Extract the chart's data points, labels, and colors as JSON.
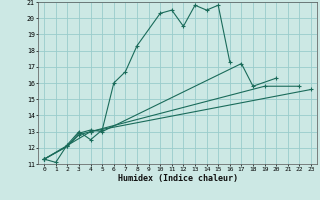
{
  "xlabel": "Humidex (Indice chaleur)",
  "ylabel": "",
  "xlim": [
    -0.5,
    23.5
  ],
  "ylim": [
    11,
    21
  ],
  "xtick_labels": [
    "0",
    "1",
    "2",
    "3",
    "4",
    "5",
    "6",
    "7",
    "8",
    "9",
    "10",
    "11",
    "12",
    "13",
    "14",
    "15",
    "16",
    "17",
    "18",
    "19",
    "20",
    "21",
    "22",
    "23"
  ],
  "ytick_labels": [
    "11",
    "12",
    "13",
    "14",
    "15",
    "16",
    "17",
    "18",
    "19",
    "20",
    "21"
  ],
  "background_color": "#cce8e4",
  "grid_color": "#99cccc",
  "line_color": "#1a6b5a",
  "series": [
    [
      0,
      11.3
    ],
    [
      1,
      11.1
    ],
    [
      2,
      12.2
    ],
    [
      3,
      13.0
    ],
    [
      4,
      12.5
    ],
    [
      5,
      13.1
    ],
    [
      6,
      16.0
    ],
    [
      7,
      16.7
    ],
    [
      8,
      18.3
    ],
    [
      10,
      20.3
    ],
    [
      11,
      20.5
    ],
    [
      12,
      19.5
    ],
    [
      13,
      20.8
    ],
    [
      14,
      20.5
    ],
    [
      15,
      20.8
    ],
    [
      16,
      17.3
    ]
  ],
  "line2": [
    [
      0,
      11.3
    ],
    [
      2,
      12.1
    ],
    [
      3,
      12.9
    ],
    [
      4,
      13.1
    ],
    [
      5,
      13.0
    ],
    [
      17,
      17.2
    ],
    [
      18,
      15.8
    ],
    [
      20,
      16.3
    ]
  ],
  "line3": [
    [
      0,
      11.3
    ],
    [
      2,
      12.1
    ],
    [
      3,
      12.8
    ],
    [
      4,
      13.0
    ],
    [
      19,
      15.8
    ],
    [
      22,
      15.8
    ]
  ],
  "line4": [
    [
      0,
      11.3
    ],
    [
      4,
      13.0
    ],
    [
      23,
      15.6
    ]
  ]
}
